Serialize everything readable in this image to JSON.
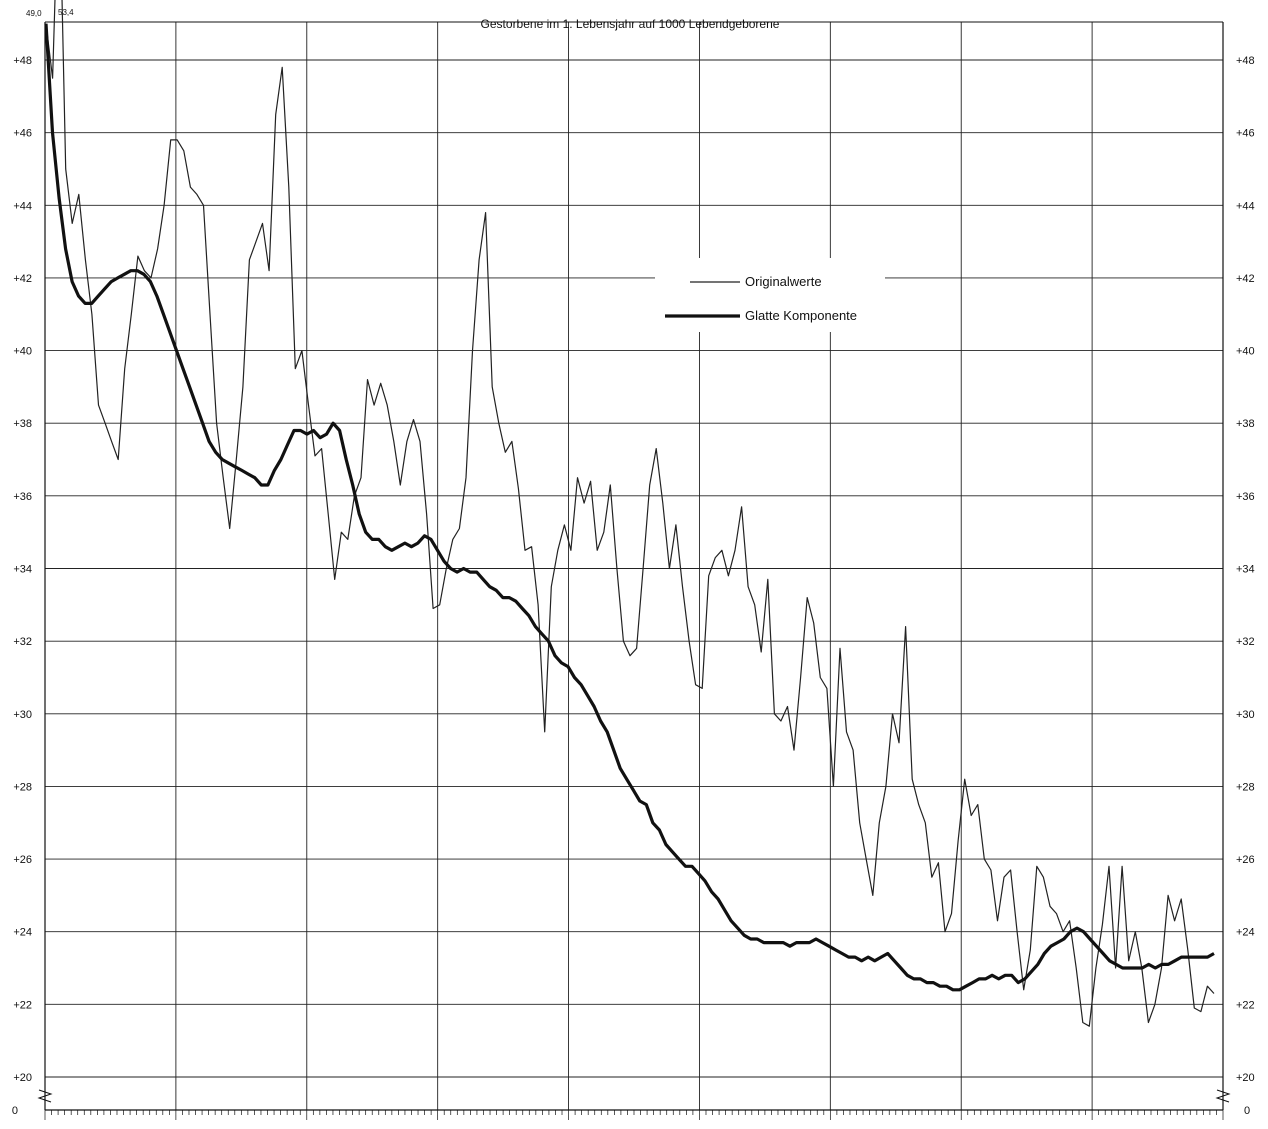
{
  "chart_data": {
    "type": "line",
    "title": "Gestorbene im 1. Lebensjahr auf 1000 Lebendgeborene",
    "xlabel": "",
    "ylabel": "",
    "ylim": [
      20,
      48
    ],
    "yticks": [
      20,
      22,
      24,
      26,
      28,
      30,
      32,
      34,
      36,
      38,
      40,
      42,
      44,
      46,
      48
    ],
    "ytick_labels": [
      "+20",
      "+22",
      "+24",
      "+26",
      "+28",
      "+30",
      "+32",
      "+34",
      "+36",
      "+38",
      "+40",
      "+42",
      "+44",
      "+46",
      "+48"
    ],
    "axis_zero_label": "0",
    "grid": true,
    "legend_position": "center-right",
    "annotations": [
      "49,0",
      "53,4"
    ],
    "x_minor_ticks": 180,
    "x_major_every": 20,
    "series": [
      {
        "name": "Originalwerte",
        "color": "#222222",
        "values": [
          49.0,
          47.5,
          53.4,
          45.0,
          43.5,
          44.3,
          42.5,
          41.0,
          38.5,
          38.0,
          37.5,
          37.0,
          39.5,
          41.0,
          42.6,
          42.2,
          42.0,
          42.8,
          44.0,
          45.8,
          45.8,
          45.5,
          44.5,
          44.3,
          44.0,
          41.0,
          38.0,
          36.5,
          35.1,
          37.0,
          39.0,
          42.5,
          43.0,
          43.5,
          42.2,
          46.5,
          47.8,
          44.5,
          39.5,
          40.0,
          38.5,
          37.1,
          37.3,
          35.5,
          33.7,
          35.0,
          34.8,
          36.0,
          36.5,
          39.2,
          38.5,
          39.1,
          38.5,
          37.5,
          36.3,
          37.5,
          38.1,
          37.5,
          35.5,
          32.9,
          33.0,
          34.0,
          34.8,
          35.1,
          36.5,
          40.0,
          42.5,
          43.8,
          39.0,
          38.0,
          37.2,
          37.5,
          36.2,
          34.5,
          34.6,
          33.0,
          29.5,
          33.5,
          34.5,
          35.2,
          34.5,
          36.5,
          35.8,
          36.4,
          34.5,
          35.0,
          36.3,
          34.0,
          32.0,
          31.6,
          31.8,
          34.0,
          36.3,
          37.3,
          35.8,
          34.0,
          35.2,
          33.5,
          32.0,
          30.8,
          30.7,
          33.8,
          34.3,
          34.5,
          33.8,
          34.5,
          35.7,
          33.5,
          33.0,
          31.7,
          33.7,
          30.0,
          29.8,
          30.2,
          29.0,
          31.0,
          33.2,
          32.5,
          31.0,
          30.7,
          28.0,
          31.8,
          29.5,
          29.0,
          27.0,
          26.0,
          25.0,
          27.0,
          28.0,
          30.0,
          29.2,
          32.4,
          28.2,
          27.5,
          27.0,
          25.5,
          25.9,
          24.0,
          24.5,
          26.5,
          28.2,
          27.2,
          27.5,
          26.0,
          25.7,
          24.3,
          25.5,
          25.7,
          24.0,
          22.4,
          23.5,
          25.8,
          25.5,
          24.7,
          24.5,
          24.0,
          24.3,
          23.0,
          21.5,
          21.4,
          23.0,
          24.2,
          25.8,
          23.0,
          25.8,
          23.2,
          24.0,
          23.0,
          21.5,
          22.0,
          23.0,
          25.0,
          24.3,
          24.9,
          23.5,
          21.9,
          21.8,
          22.5,
          22.3
        ]
      },
      {
        "name": "Glatte Komponente",
        "color": "#111111",
        "values": [
          49.0,
          46.0,
          44.2,
          42.8,
          41.9,
          41.5,
          41.3,
          41.3,
          41.5,
          41.7,
          41.9,
          42.0,
          42.1,
          42.2,
          42.2,
          42.1,
          41.9,
          41.5,
          41.0,
          40.5,
          40.0,
          39.5,
          39.0,
          38.5,
          38.0,
          37.5,
          37.2,
          37.0,
          36.9,
          36.8,
          36.7,
          36.6,
          36.5,
          36.3,
          36.3,
          36.7,
          37.0,
          37.4,
          37.8,
          37.8,
          37.7,
          37.8,
          37.6,
          37.7,
          38.0,
          37.8,
          37.0,
          36.3,
          35.5,
          35.0,
          34.8,
          34.8,
          34.6,
          34.5,
          34.6,
          34.7,
          34.6,
          34.7,
          34.9,
          34.8,
          34.5,
          34.2,
          34.0,
          33.9,
          34.0,
          33.9,
          33.9,
          33.7,
          33.5,
          33.4,
          33.2,
          33.2,
          33.1,
          32.9,
          32.7,
          32.4,
          32.2,
          32.0,
          31.6,
          31.4,
          31.3,
          31.0,
          30.8,
          30.5,
          30.2,
          29.8,
          29.5,
          29.0,
          28.5,
          28.2,
          27.9,
          27.6,
          27.5,
          27.0,
          26.8,
          26.4,
          26.2,
          26.0,
          25.8,
          25.8,
          25.6,
          25.4,
          25.1,
          24.9,
          24.6,
          24.3,
          24.1,
          23.9,
          23.8,
          23.8,
          23.7,
          23.7,
          23.7,
          23.7,
          23.6,
          23.7,
          23.7,
          23.7,
          23.8,
          23.7,
          23.6,
          23.5,
          23.4,
          23.3,
          23.3,
          23.2,
          23.3,
          23.2,
          23.3,
          23.4,
          23.2,
          23.0,
          22.8,
          22.7,
          22.7,
          22.6,
          22.6,
          22.5,
          22.5,
          22.4,
          22.4,
          22.5,
          22.6,
          22.7,
          22.7,
          22.8,
          22.7,
          22.8,
          22.8,
          22.6,
          22.7,
          22.9,
          23.1,
          23.4,
          23.6,
          23.7,
          23.8,
          24.0,
          24.1,
          24.0,
          23.8,
          23.6,
          23.4,
          23.2,
          23.1,
          23.0,
          23.0,
          23.0,
          23.0,
          23.1,
          23.0,
          23.1,
          23.1,
          23.2,
          23.3,
          23.3,
          23.3,
          23.3,
          23.3,
          23.4
        ]
      }
    ]
  }
}
